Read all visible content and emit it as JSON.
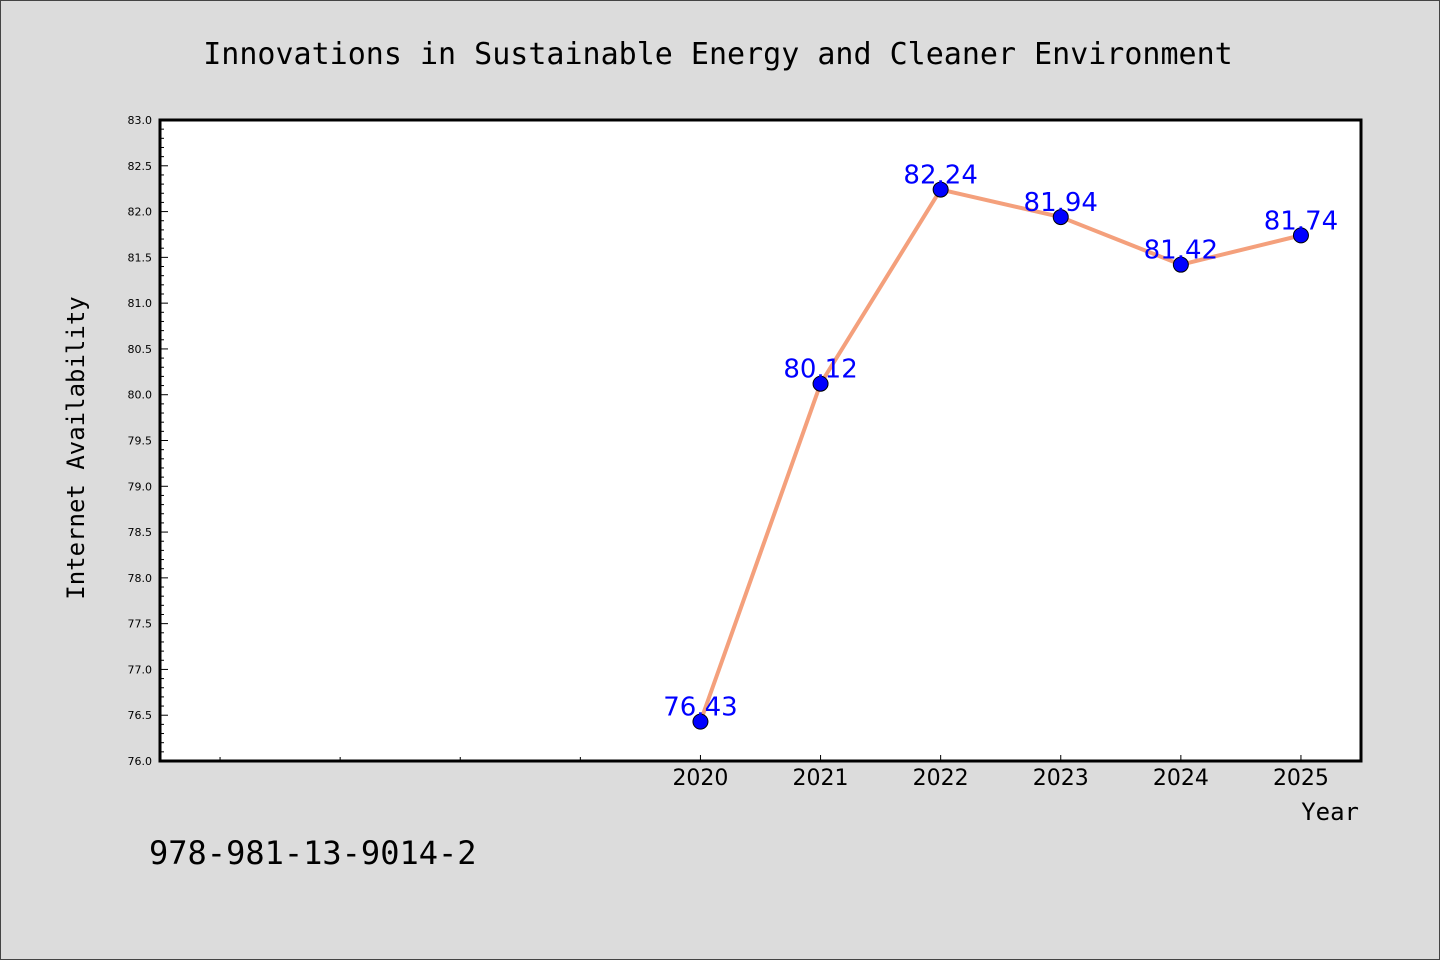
{
  "chart_data": {
    "type": "line",
    "title": "Innovations in Sustainable Energy and Cleaner Environment",
    "xlabel": "Year",
    "ylabel": "Internet Availability",
    "x": [
      2020,
      2021,
      2022,
      2023,
      2024,
      2025
    ],
    "x_tick_labels": [
      "2020",
      "2021",
      "2022",
      "2023",
      "2024",
      "2025"
    ],
    "series": [
      {
        "values": [
          76.43,
          80.12,
          82.24,
          81.94,
          81.42,
          81.74
        ]
      }
    ],
    "data_labels": [
      "76.43",
      "80.12",
      "82.24",
      "81.94",
      "81.42",
      "81.74"
    ],
    "ylim": [
      76.0,
      83.0
    ],
    "y_ticks": [
      76.0,
      76.5,
      77.0,
      77.5,
      78.0,
      78.5,
      79.0,
      79.5,
      80.0,
      80.5,
      81.0,
      81.5,
      82.0,
      82.5,
      83.0
    ],
    "x_minor_ticks": [
      2016,
      2017,
      2018,
      2019
    ],
    "xlim": [
      2015.5,
      2025.5
    ],
    "grid": false,
    "legend": "none",
    "line_color": "#f4a07c",
    "marker_color": "#0000ff",
    "label_color": "#0000ff"
  },
  "footer": {
    "code": "978-981-13-9014-2"
  }
}
